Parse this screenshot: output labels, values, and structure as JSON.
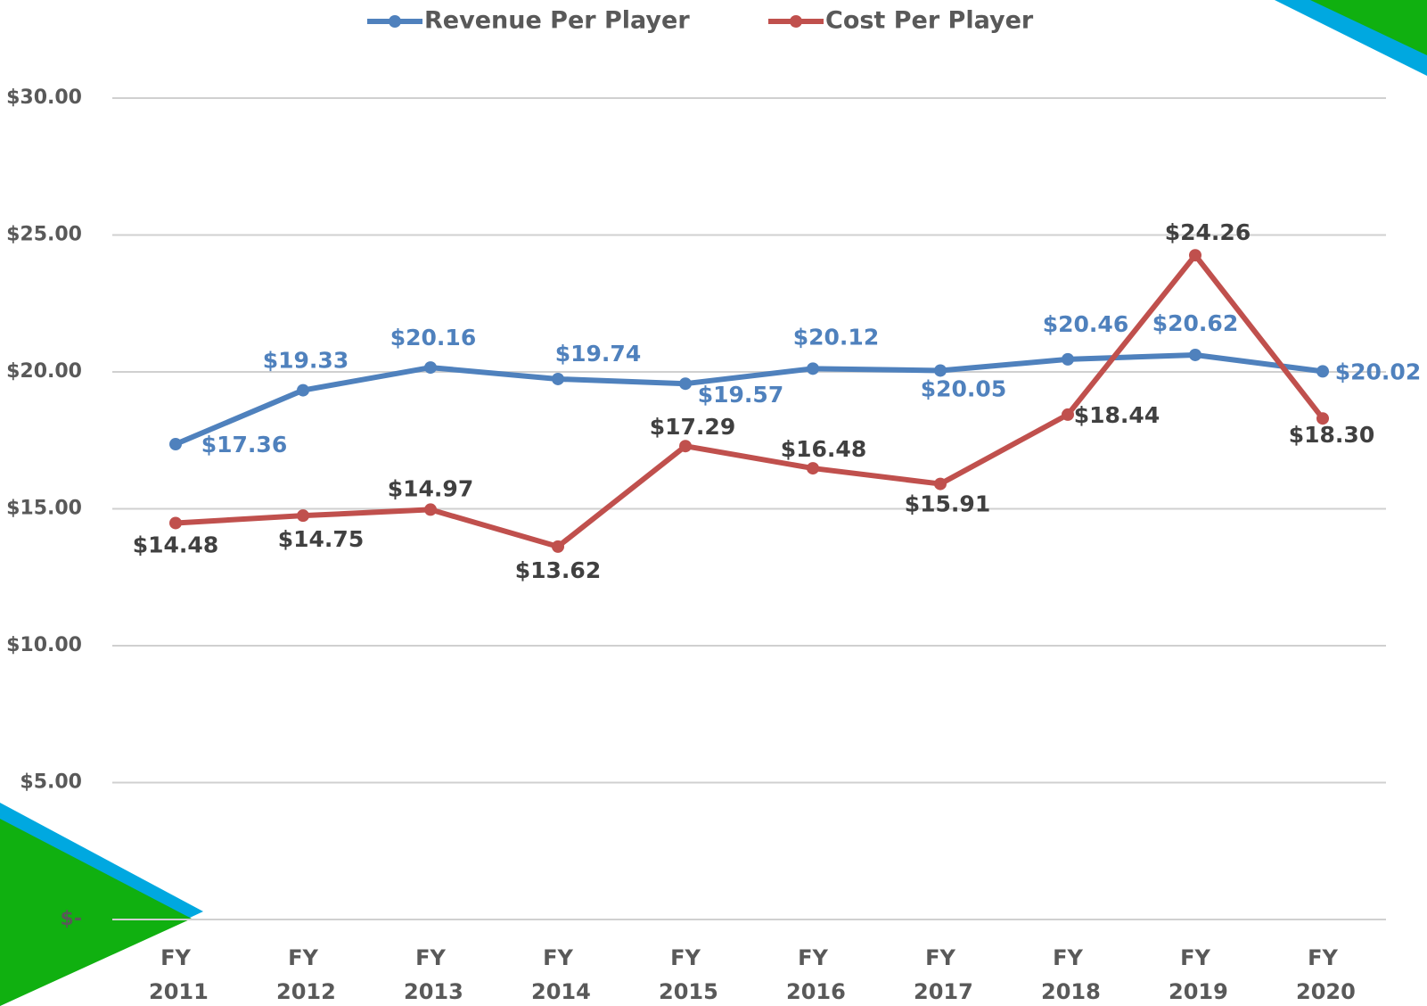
{
  "chart_data": {
    "type": "line",
    "categories": [
      "FY 2011",
      "FY 2012",
      "FY 2013",
      "FY 2014",
      "FY 2015",
      "FY 2016",
      "FY 2017",
      "FY 2018",
      "FY 2019",
      "FY 2020"
    ],
    "series": [
      {
        "name": "Revenue Per Player",
        "color": "#4f81bd",
        "values": [
          17.36,
          19.33,
          20.16,
          19.74,
          19.57,
          20.12,
          20.05,
          20.46,
          20.62,
          20.02
        ],
        "value_labels": [
          "$17.36",
          "$19.33",
          "$20.16",
          "$19.74",
          "$19.57",
          "$20.12",
          "$20.05",
          "$20.46",
          "$20.62",
          "$20.02"
        ]
      },
      {
        "name": "Cost Per Player",
        "color": "#c0504d",
        "values": [
          14.48,
          14.75,
          14.97,
          13.62,
          17.29,
          16.48,
          15.91,
          18.44,
          24.26,
          18.3
        ],
        "value_labels": [
          "$14.48",
          "$14.75",
          "$14.97",
          "$13.62",
          "$17.29",
          "$16.48",
          "$15.91",
          "$18.44",
          "$24.26",
          "$18.30"
        ]
      }
    ],
    "ylim": [
      0,
      30
    ],
    "yticks": [
      {
        "value": 0,
        "label": "$-"
      },
      {
        "value": 5,
        "label": "$5.00"
      },
      {
        "value": 10,
        "label": "$10.00"
      },
      {
        "value": 15,
        "label": "$15.00"
      },
      {
        "value": 20,
        "label": "$20.00"
      },
      {
        "value": 25,
        "label": "$25.00"
      },
      {
        "value": 30,
        "label": "$30.00"
      }
    ],
    "grid": true,
    "legend": "top"
  }
}
